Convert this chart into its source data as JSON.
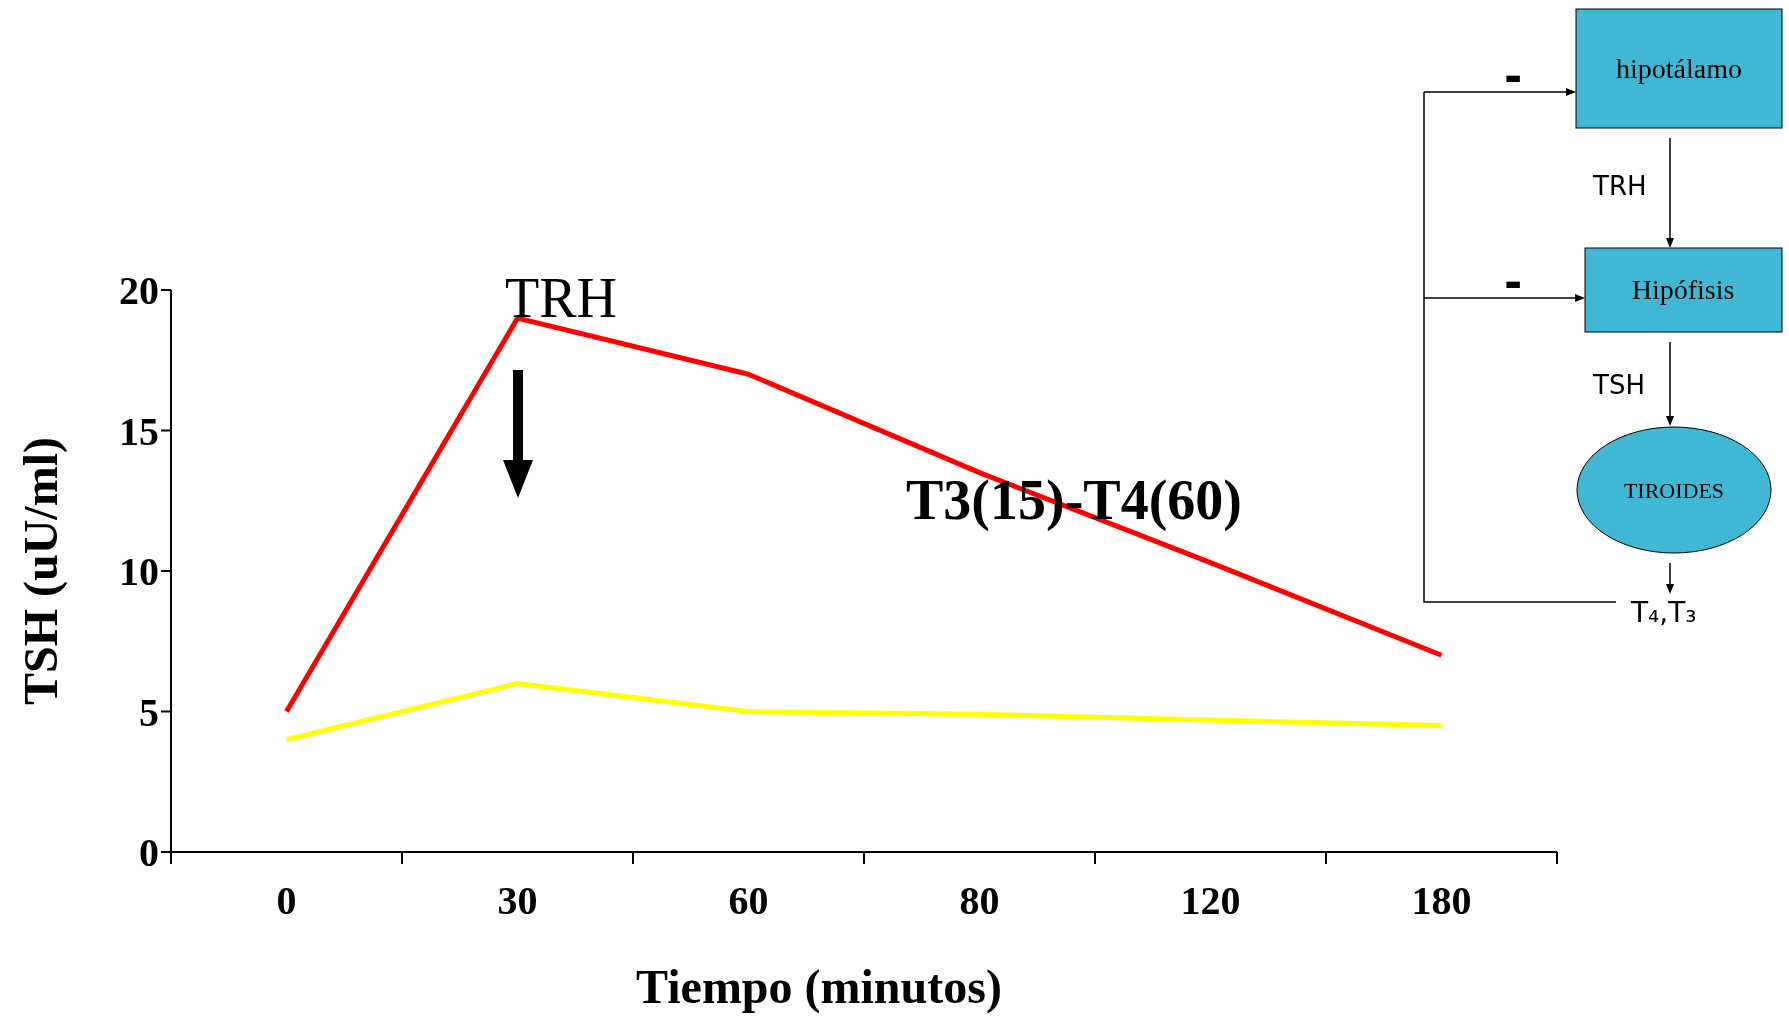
{
  "chart_data": {
    "type": "line",
    "xlabel": "Tiempo (minutos)",
    "ylabel": "TSH (uU/ml)",
    "categories": [
      "0",
      "30",
      "60",
      "80",
      "120",
      "180"
    ],
    "series": [
      {
        "color": "#ff0000",
        "values": [
          5,
          19,
          17,
          13.5,
          10.3,
          7
        ]
      },
      {
        "color": "#ffff00",
        "values": [
          4,
          6,
          5,
          4.9,
          4.7,
          4.5
        ]
      }
    ],
    "ylim": [
      0,
      20
    ],
    "yticks": [
      0,
      5,
      10,
      15,
      20
    ],
    "marker": "none",
    "line_style": "solid",
    "annotations": [
      "TRH",
      "T3(15)-T4(60)",
      "hipotálamo",
      "TRH",
      "Hipófisis",
      "TSH",
      "TIROIDES",
      "T₄,T₃",
      "-",
      "-"
    ]
  }
}
